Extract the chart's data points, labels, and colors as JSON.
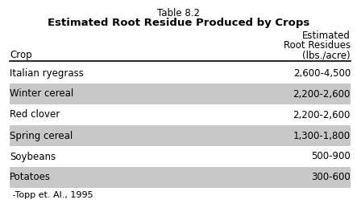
{
  "title_line1": "Table 8.2",
  "title_line2": "Estimated Root Residue Produced by Crops",
  "col_header_left": "Crop",
  "col_header_right_line1": "Estimated",
  "col_header_right_line2": "Root Residues",
  "col_header_right_line3": "(lbs./acre)",
  "rows": [
    {
      "crop": "Italian ryegrass",
      "value": "2,600-4,500",
      "shaded": false
    },
    {
      "crop": "Winter cereal",
      "value": "2,200-2,600",
      "shaded": true
    },
    {
      "crop": "Red clover",
      "value": "2,200-2,600",
      "shaded": false
    },
    {
      "crop": "Spring cereal",
      "value": "1,300-1,800",
      "shaded": true
    },
    {
      "crop": "Soybeans",
      "value": "500-900",
      "shaded": false
    },
    {
      "crop": "Potatoes",
      "value": "300-600",
      "shaded": true
    }
  ],
  "footnote": " -Topp et. Al., 1995",
  "shade_color": "#c8c8c8",
  "bg_color": "#ffffff",
  "text_color": "#000000",
  "header_line_color": "#000000",
  "title1_fontsize": 8.5,
  "title2_fontsize": 9.5,
  "header_fontsize": 8.5,
  "data_fontsize": 8.5,
  "footnote_fontsize": 8.0
}
